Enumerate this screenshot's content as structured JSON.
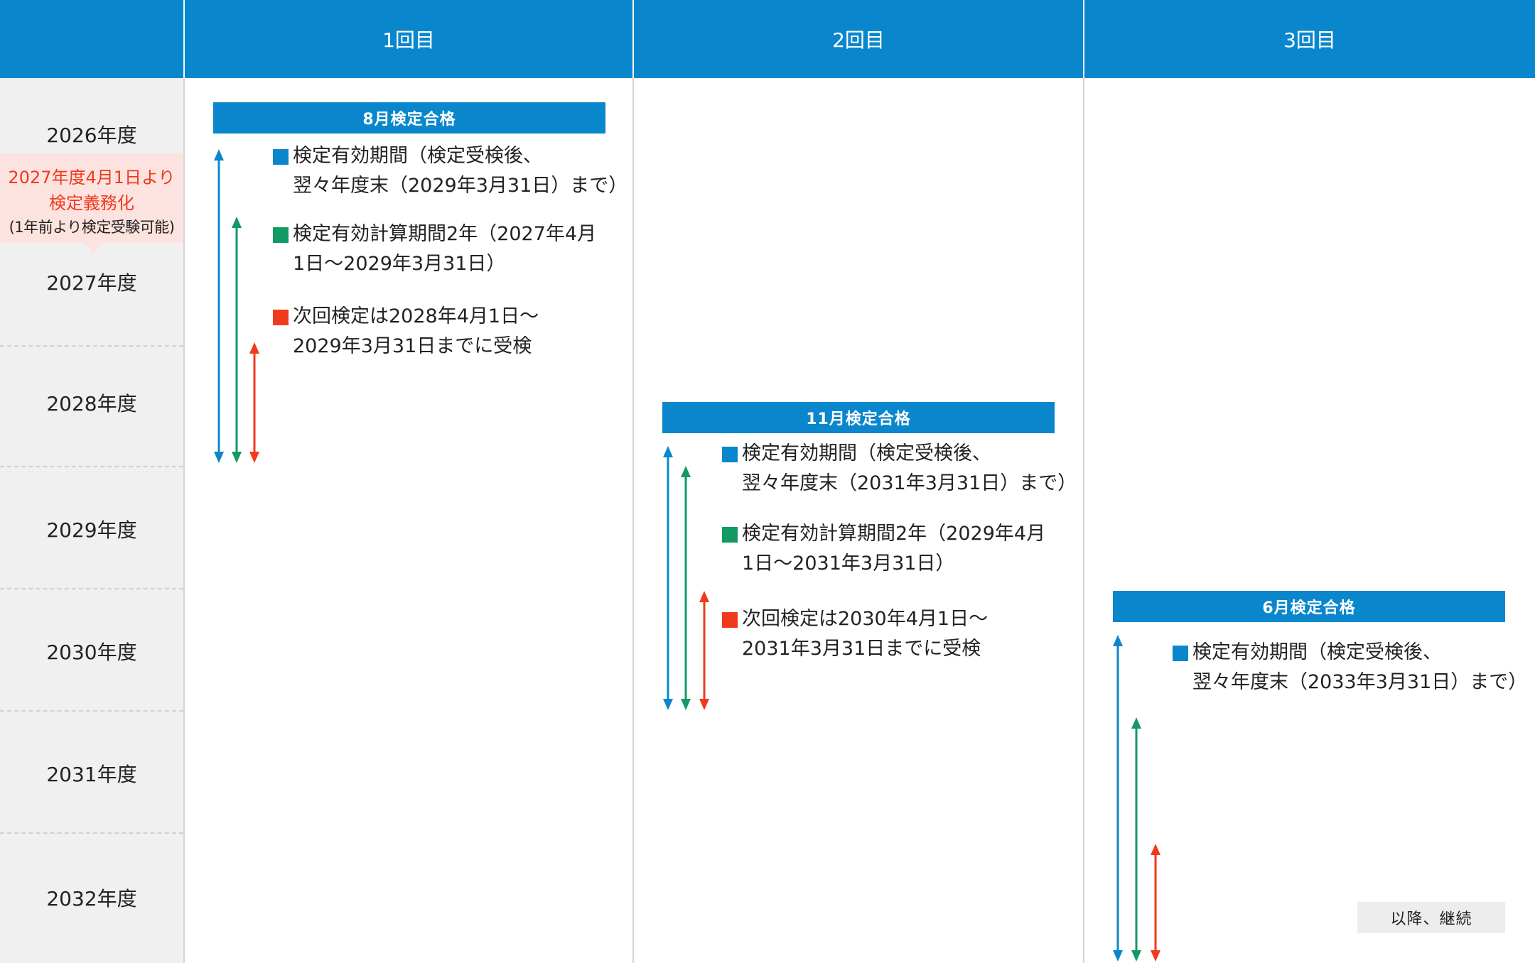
{
  "header": {
    "columns": [
      "1回目",
      "2回目",
      "3回目"
    ]
  },
  "years": [
    "2026年度",
    "2027年度",
    "2028年度",
    "2029年度",
    "2030年度",
    "2031年度",
    "2032年度"
  ],
  "note": {
    "line1": "2027年度4月1日より",
    "line2": "検定義務化",
    "line3": "(1年前より検定受験可能)"
  },
  "rounds": [
    {
      "badge": "8月検定合格",
      "items": [
        {
          "color": "#0a87cc",
          "line1": "検定有効期間（検定受検後、",
          "line2": "翌々年度末（2029年3月31日）まで）"
        },
        {
          "color": "#129a64",
          "line1": "検定有効計算期間2年（2027年4月",
          "line2": "1日〜2029年3月31日）"
        },
        {
          "color": "#f03a1e",
          "line1": "次回検定は2028年4月1日〜",
          "line2": "2029年3月31日までに受検"
        }
      ]
    },
    {
      "badge": "11月検定合格",
      "items": [
        {
          "color": "#0a87cc",
          "line1": "検定有効期間（検定受検後、",
          "line2": "翌々年度末（2031年3月31日）まで）"
        },
        {
          "color": "#129a64",
          "line1": "検定有効計算期間2年（2029年4月",
          "line2": "1日〜2031年3月31日）"
        },
        {
          "color": "#f03a1e",
          "line1": "次回検定は2030年4月1日〜",
          "line2": "2031年3月31日までに受検"
        }
      ]
    },
    {
      "badge": "6月検定合格",
      "items": [
        {
          "color": "#0a87cc",
          "line1": "検定有効期間（検定受検後、",
          "line2": "翌々年度末（2033年3月31日）まで）"
        }
      ],
      "continue_label": "以降、継続"
    }
  ],
  "colors": {
    "header_blue": "#0a87cc",
    "validity_blue": "#0a87cc",
    "calc_green": "#129a64",
    "next_red": "#f03a1e",
    "note_red": "#f03a1e",
    "note_bg": "#fde3df"
  }
}
